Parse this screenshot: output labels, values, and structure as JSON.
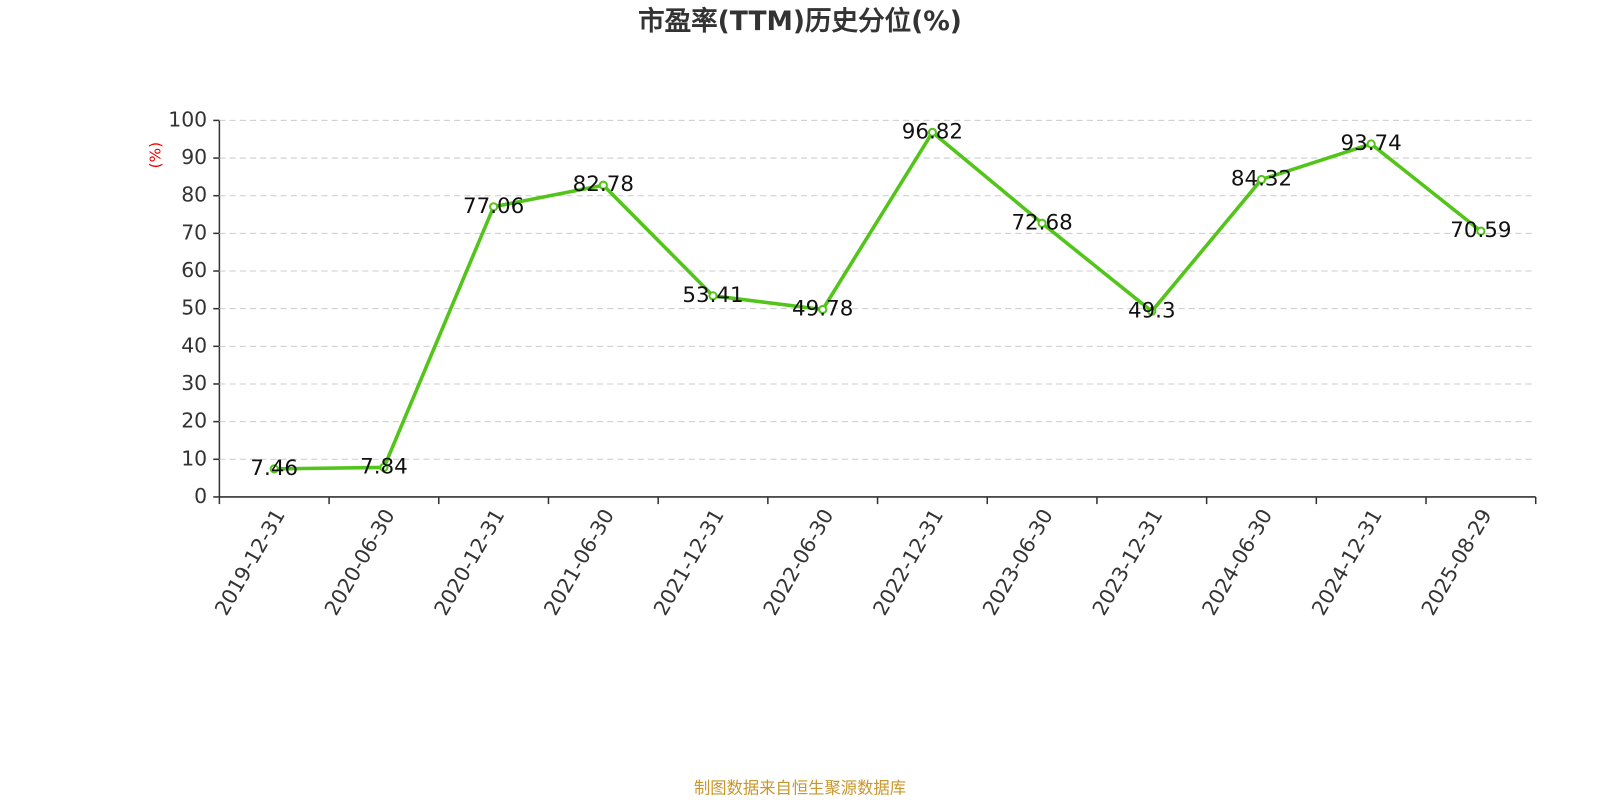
{
  "chart_data": {
    "type": "line",
    "title": "市盈率(TTM)历史分位(%)",
    "y_label": "(%)",
    "categories": [
      "2019-12-31",
      "2020-06-30",
      "2020-12-31",
      "2021-06-30",
      "2021-12-31",
      "2022-06-30",
      "2022-12-31",
      "2023-06-30",
      "2023-12-31",
      "2024-06-30",
      "2024-12-31",
      "2025-08-29"
    ],
    "values": [
      7.46,
      7.84,
      77.06,
      82.78,
      53.41,
      49.78,
      96.82,
      72.68,
      49.3,
      84.32,
      93.74,
      70.59
    ],
    "color": "#52c41a",
    "ylim": [
      0,
      100
    ],
    "yticks": [
      0,
      10,
      20,
      30,
      40,
      50,
      60,
      70,
      80,
      90,
      100
    ],
    "grid": true,
    "source": "制图数据来自恒生聚源数据库"
  }
}
